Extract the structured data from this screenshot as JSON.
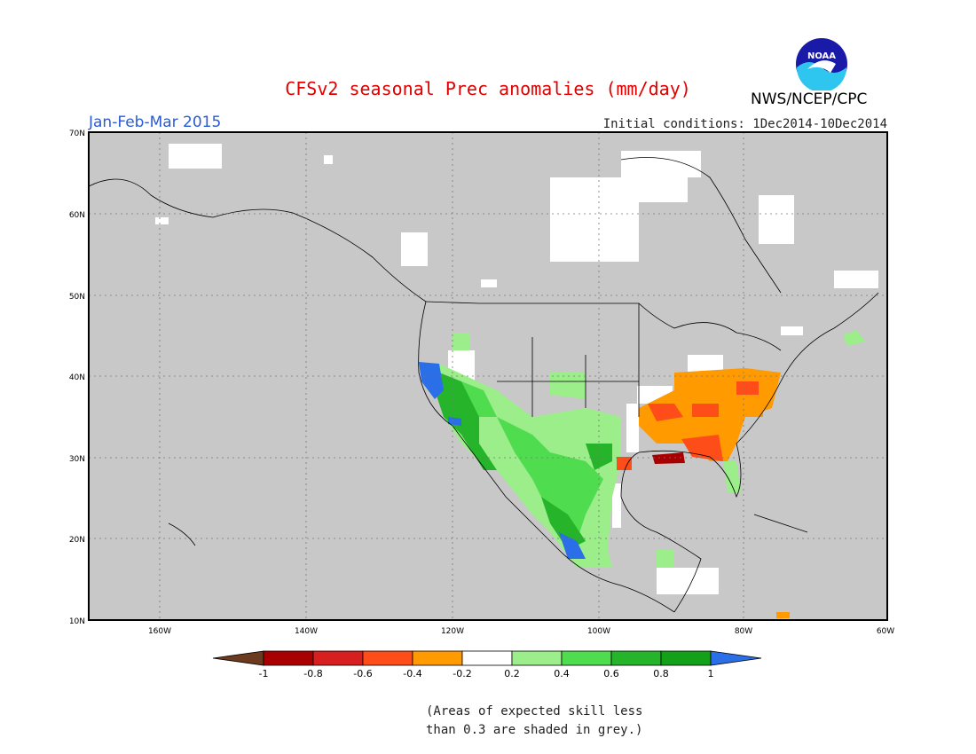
{
  "title": "CFSv2 seasonal Prec anomalies (mm/day)",
  "period": "Jan-Feb-Mar 2015",
  "initial_conditions": "Initial conditions: 1Dec2014-10Dec2014",
  "agency": "NWS/NCEP/CPC",
  "logo_text": "NOAA",
  "axis": {
    "lat_ticks": [
      "70N",
      "60N",
      "50N",
      "40N",
      "30N",
      "20N",
      "10N"
    ],
    "lon_ticks": [
      "160W",
      "140W",
      "120W",
      "100W",
      "80W",
      "60W"
    ]
  },
  "colorbar": {
    "labels": [
      "-1",
      "-0.8",
      "-0.6",
      "-0.4",
      "-0.2",
      "0.2",
      "0.4",
      "0.6",
      "0.8",
      "1"
    ],
    "colors": [
      "#6b3a1f",
      "#a80000",
      "#d71f1f",
      "#ff4d1a",
      "#ff9a00",
      "#ffffff",
      "#9bee8a",
      "#4fdc4f",
      "#25b42a",
      "#15a01a",
      "#2a6ee8"
    ]
  },
  "note_line1": "(Areas of expected skill less",
  "note_line2": "than 0.3 are shaded in grey.)"
}
